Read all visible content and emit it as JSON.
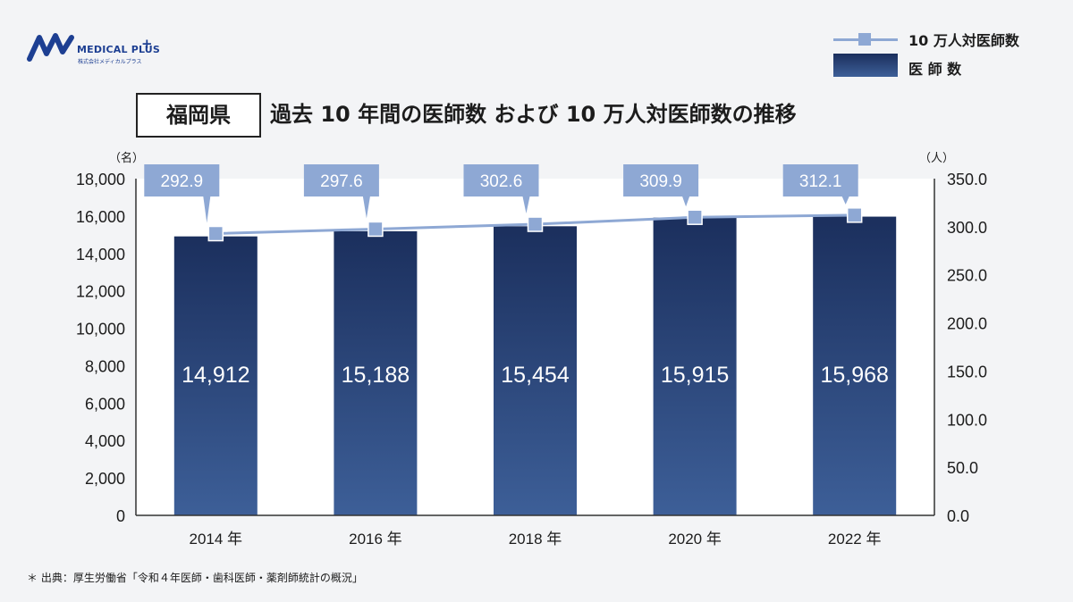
{
  "logo": {
    "name": "MEDICAL PLUS",
    "plus": "+",
    "company": "株式会社メディカルプラス"
  },
  "prefecture": "福岡県",
  "source": "＊ 出典：厚生労働省「令和４年医師・歯科医師・薬剤師統計の概況」",
  "colors": {
    "bar_top": "#1b2f5d",
    "bar_bottom": "#3d5f98",
    "line": "#8ea8d4",
    "callout": "#8ea8d4",
    "plot_bg": "#ffffff",
    "page_bg": "#f3f4f6"
  },
  "chart_data": {
    "type": "bar",
    "title": "過去 10 年間の医師数 および 10 万人対医師数の推移",
    "categories": [
      "2014 年",
      "2016 年",
      "2018 年",
      "2020 年",
      "2022 年"
    ],
    "series": [
      {
        "name": "医 師 数",
        "type": "bar",
        "axis": "left",
        "values": [
          14912,
          15188,
          15454,
          15915,
          15968
        ],
        "labels": [
          "14,912",
          "15,188",
          "15,454",
          "15,915",
          "15,968"
        ]
      },
      {
        "name": "10 万人対医師数",
        "type": "line",
        "axis": "right",
        "values": [
          292.9,
          297.6,
          302.6,
          309.9,
          312.1
        ],
        "labels": [
          "292.9",
          "297.6",
          "302.6",
          "309.9",
          "312.1"
        ]
      }
    ],
    "y_left": {
      "unit": "（名）",
      "ylim": [
        0,
        18000
      ],
      "ticks": [
        "0",
        "2,000",
        "4,000",
        "6,000",
        "8,000",
        "10,000",
        "12,000",
        "14,000",
        "16,000",
        "18,000"
      ]
    },
    "y_right": {
      "unit": "（人）",
      "ylim": [
        0,
        350
      ],
      "ticks": [
        "0.0",
        "50.0",
        "100.0",
        "150.0",
        "200.0",
        "250.0",
        "300.0",
        "350.0"
      ]
    },
    "grid": false,
    "legend": "top-right"
  }
}
